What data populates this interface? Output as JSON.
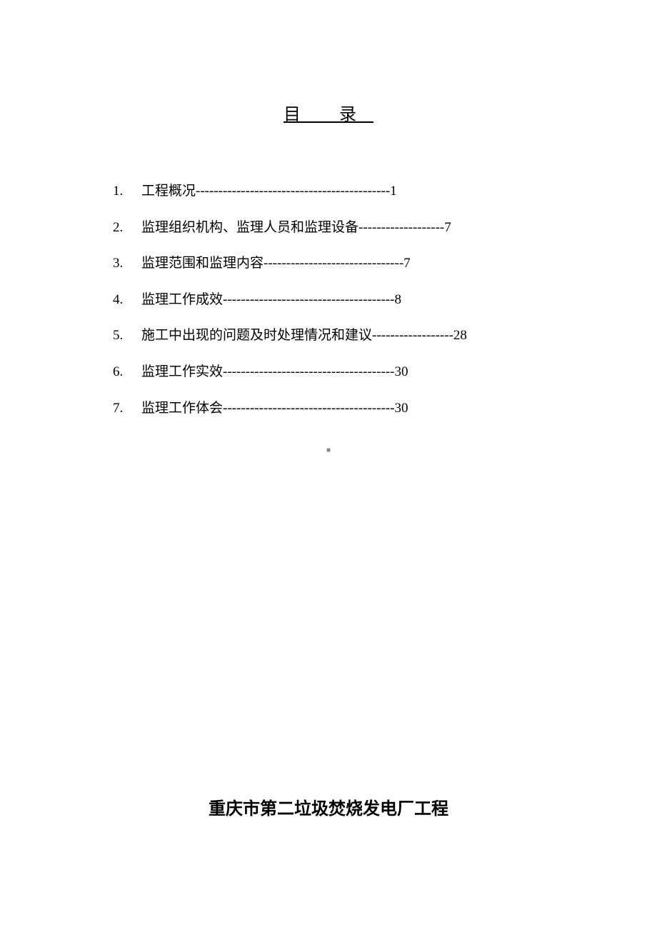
{
  "document": {
    "title": "目 录",
    "background_color": "#ffffff",
    "text_color": "#000000",
    "title_fontsize": 24,
    "body_fontsize": 19,
    "footer_fontsize": 24,
    "toc_items": [
      {
        "number": "1.",
        "text": "工程概况",
        "dashes": "-------------------------------------------",
        "page": "1"
      },
      {
        "number": "2.",
        "text": "监理组织机构、监理人员和监理设备",
        "dashes": "-------------------",
        "page": "7"
      },
      {
        "number": "3.",
        "text": "监理范围和监理内容",
        "dashes": "-------------------------------",
        "page": "7"
      },
      {
        "number": "4.",
        "text": "监理工作成效",
        "dashes": "--------------------------------------",
        "page": "8"
      },
      {
        "number": "5.",
        "text": "施工中出现的问题及时处理情况和建议",
        "dashes": "------------------",
        "page": "28"
      },
      {
        "number": "6.",
        "text": "监理工作实效",
        "dashes": "--------------------------------------",
        "page": "30"
      },
      {
        "number": "7.",
        "text": "监理工作体会",
        "dashes": "--------------------------------------",
        "page": "30"
      }
    ],
    "center_marker": "■",
    "footer_title": "重庆市第二垃圾焚烧发电厂工程"
  }
}
